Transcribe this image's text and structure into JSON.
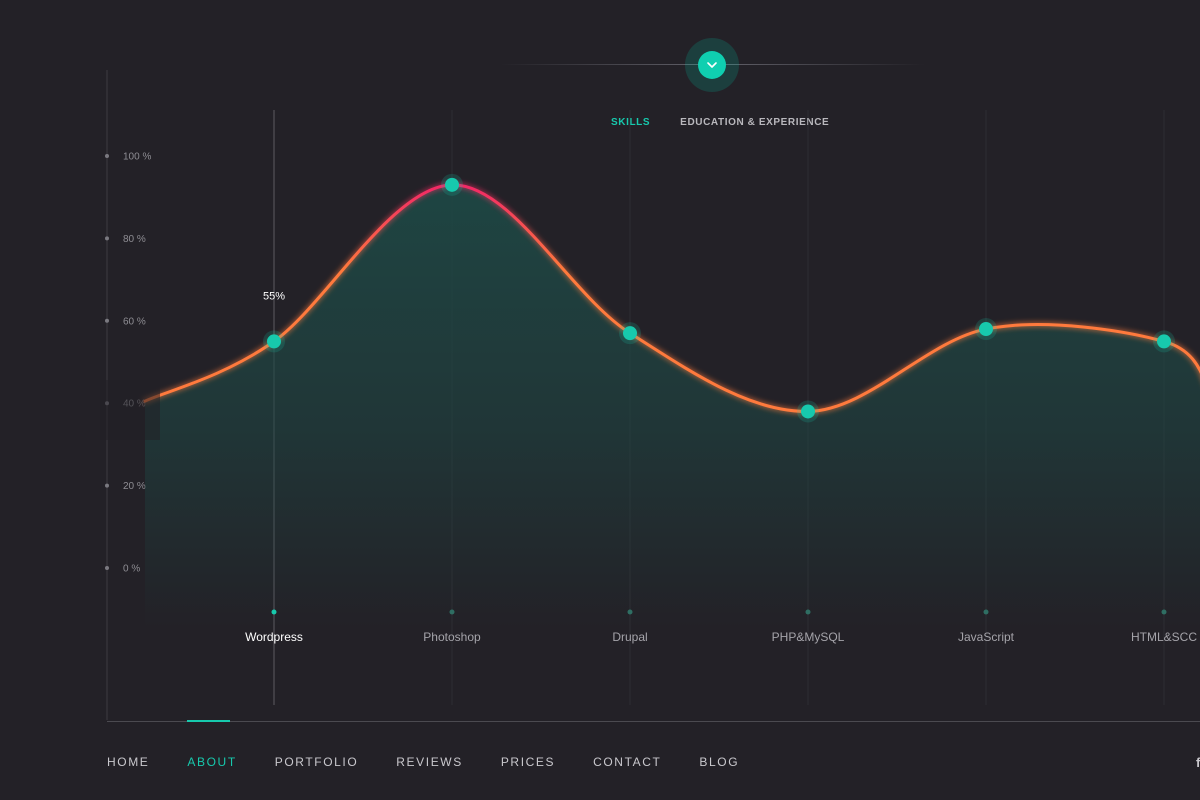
{
  "tabs": [
    {
      "label": "SKILLS",
      "active": true
    },
    {
      "label": "EDUCATION & EXPERIENCE",
      "active": false
    }
  ],
  "toggle": {
    "icon": "chevron-down-icon"
  },
  "colors": {
    "background": "#232127",
    "accent": "#17c9ad",
    "curve_start": "#ff7a3c",
    "curve_peak": "#f0206a",
    "fill": "#1e4744"
  },
  "chart_data": {
    "type": "area",
    "categories": [
      "Wordpress",
      "Photoshop",
      "Drupal",
      "PHP&MySQL",
      "JavaScript",
      "HTML&SCC"
    ],
    "values": [
      55,
      93,
      57,
      38,
      58,
      55
    ],
    "selected_index": 0,
    "selected_value_label": "55%",
    "y_ticks": [
      "100 %",
      "80 %",
      "60 %",
      "40 %",
      "20 %",
      "0 %"
    ],
    "ylim": [
      0,
      100
    ],
    "grid": true
  },
  "nav": {
    "items": [
      "HOME",
      "ABOUT",
      "PORTFOLIO",
      "REVIEWS",
      "PRICES",
      "CONTACT",
      "BLOG"
    ],
    "active_index": 1,
    "social_icon_label": "f"
  }
}
